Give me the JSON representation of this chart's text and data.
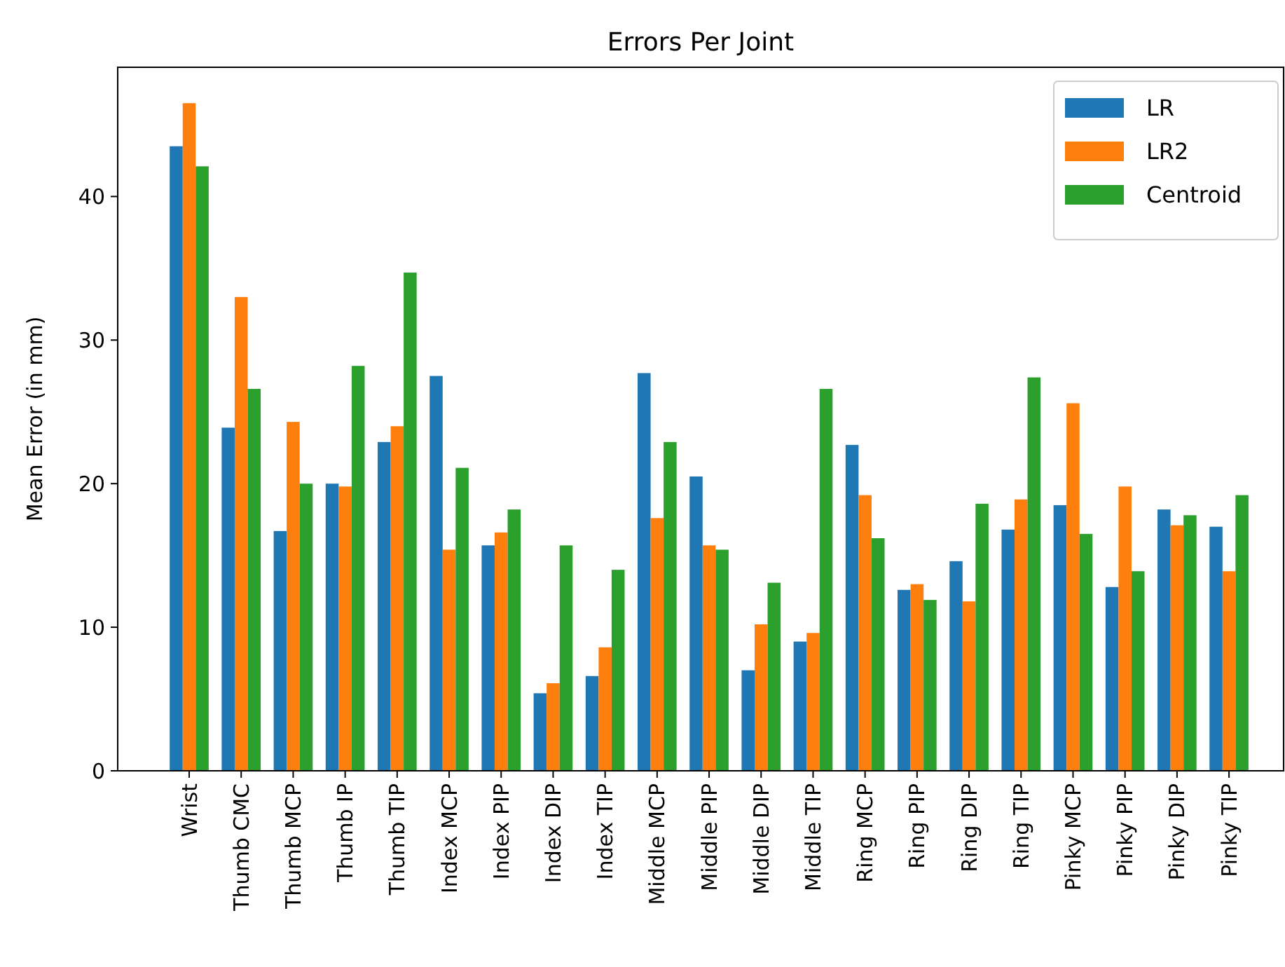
{
  "chart_data": {
    "type": "bar",
    "title": "Errors Per Joint",
    "ylabel": "Mean Error (in mm)",
    "categories": [
      "Wrist",
      "Thumb CMC",
      "Thumb MCP",
      "Thumb IP",
      "Thumb TIP",
      "Index MCP",
      "Index PIP",
      "Index DIP",
      "Index TIP",
      "Middle MCP",
      "Middle PIP",
      "Middle DIP",
      "Middle TIP",
      "Ring MCP",
      "Ring PIP",
      "Ring DIP",
      "Ring TIP",
      "Pinky MCP",
      "Pinky PIP",
      "Pinky DIP",
      "Pinky TIP"
    ],
    "series": [
      {
        "name": "LR",
        "color": "#1f77b4",
        "values": [
          43.5,
          23.9,
          16.7,
          20.0,
          22.9,
          27.5,
          15.7,
          5.4,
          6.6,
          27.7,
          20.5,
          7.0,
          9.0,
          22.7,
          12.6,
          14.6,
          16.8,
          18.5,
          12.8,
          18.2,
          17.0
        ]
      },
      {
        "name": "LR2",
        "color": "#ff7f0e",
        "values": [
          46.5,
          33.0,
          24.3,
          19.8,
          24.0,
          15.4,
          16.6,
          6.1,
          8.6,
          17.6,
          15.7,
          10.2,
          9.6,
          19.2,
          13.0,
          11.8,
          18.9,
          25.6,
          19.8,
          17.1,
          13.9
        ]
      },
      {
        "name": "Centroid",
        "color": "#2ca02c",
        "values": [
          42.1,
          26.6,
          20.0,
          28.2,
          34.7,
          21.1,
          18.2,
          15.7,
          14.0,
          22.9,
          15.4,
          13.1,
          26.6,
          16.2,
          11.9,
          18.6,
          27.4,
          16.5,
          13.9,
          17.8,
          19.2
        ]
      }
    ],
    "ylim": [
      0,
      49
    ],
    "yticks": [
      0,
      10,
      20,
      30,
      40
    ],
    "legend": "top right"
  }
}
